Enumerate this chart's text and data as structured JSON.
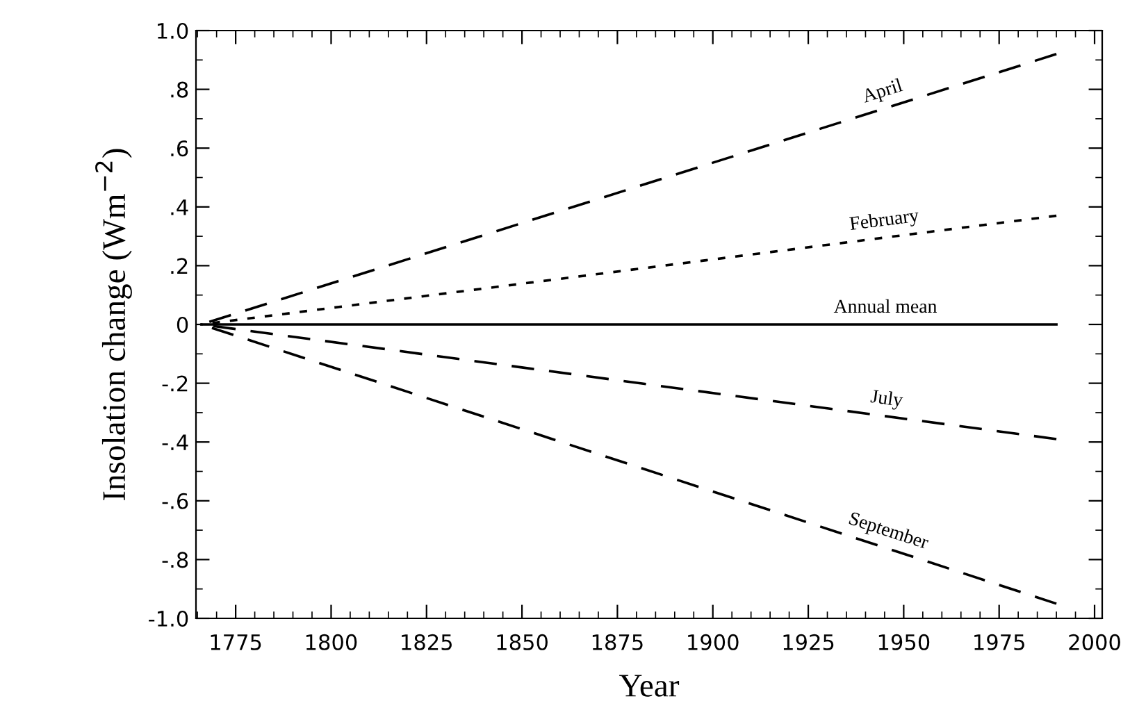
{
  "chart_data": {
    "type": "line",
    "xlabel": "Year",
    "ylabel": "Insolation change (Wm$^{−2}$)",
    "xlim": [
      1764.6,
      2002
    ],
    "ylim": [
      -1.0,
      1.0
    ],
    "xticks": [
      1775,
      1800,
      1825,
      1850,
      1875,
      1900,
      1925,
      1950,
      1975,
      2000
    ],
    "yticks": [
      {
        "value": -1.0,
        "label": "-1.0"
      },
      {
        "value": -0.8,
        "label": "-.8"
      },
      {
        "value": -0.6,
        "label": "-.6"
      },
      {
        "value": -0.4,
        "label": "-.4"
      },
      {
        "value": -0.2,
        "label": "-.2"
      },
      {
        "value": 0,
        "label": "0"
      },
      {
        "value": 0.2,
        "label": ".2"
      },
      {
        "value": 0.4,
        "label": ".4"
      },
      {
        "value": 0.6,
        "label": ".6"
      },
      {
        "value": 0.8,
        "label": ".8"
      },
      {
        "value": 1.0,
        "label": "1.0"
      }
    ],
    "x": [
      1766,
      1990
    ],
    "grid": false,
    "legend": false,
    "marker": "none",
    "series": [
      {
        "name": "April",
        "color": "#000000",
        "line_style": "dashed",
        "values": [
          0,
          0.92
        ]
      },
      {
        "name": "February",
        "color": "#000000",
        "line_style": "dotted",
        "values": [
          0,
          0.37
        ]
      },
      {
        "name": "Annual mean",
        "color": "#000000",
        "line_style": "solid",
        "values": [
          0,
          0
        ]
      },
      {
        "name": "July",
        "color": "#000000",
        "line_style": "dashed",
        "values": [
          0,
          -0.39
        ]
      },
      {
        "name": "September",
        "color": "#000000",
        "line_style": "dashed",
        "values": [
          0,
          -0.95
        ]
      }
    ]
  }
}
